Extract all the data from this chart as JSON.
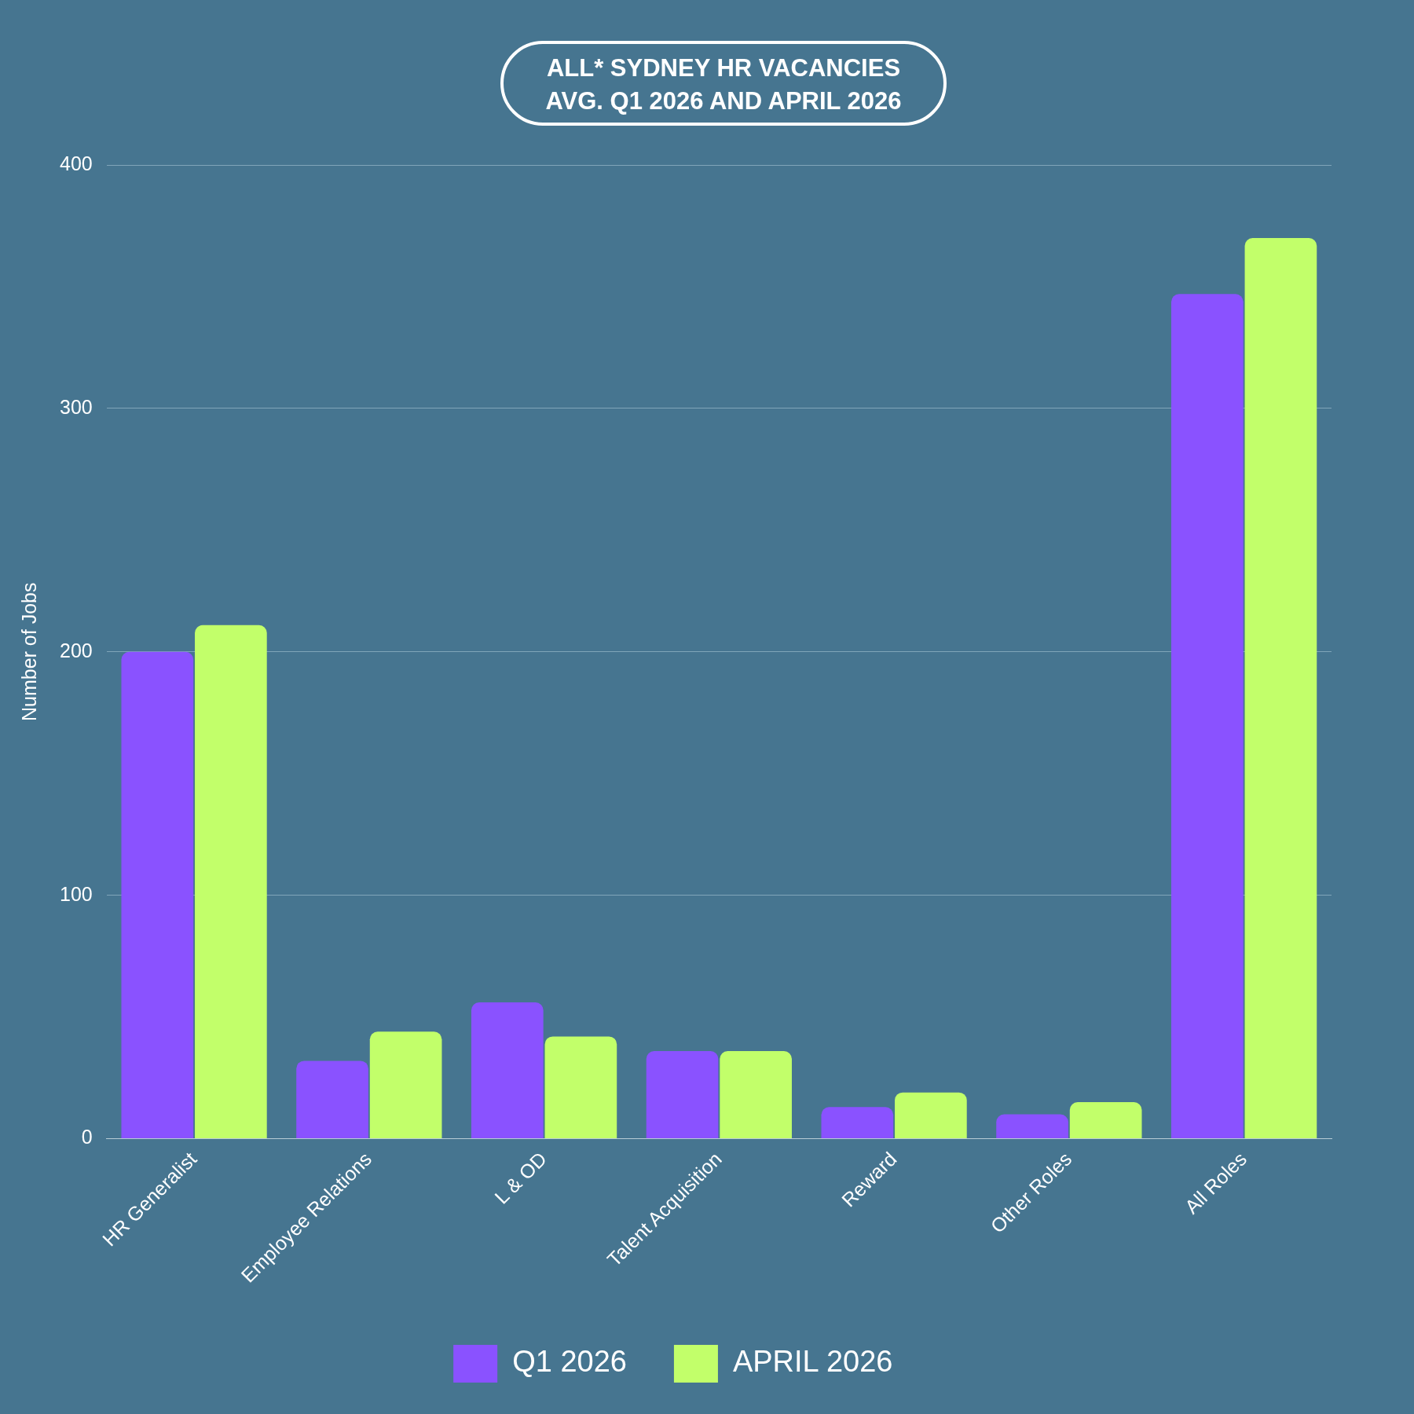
{
  "chart_data": {
    "type": "bar",
    "title": "ALL* SYDNEY HR VACANCIES",
    "subtitle": "AVG. Q1 2026 AND APRIL 2026",
    "ylabel": "Number of Jobs",
    "categories": [
      "HR Generalist",
      "Employee Relations",
      "L & OD",
      "Talent Acquisition",
      "Reward",
      "Other Roles",
      "All Roles"
    ],
    "series": [
      {
        "name": "Q1 2026",
        "color": "#8a52ff",
        "values": [
          200,
          32,
          56,
          36,
          13,
          10,
          347
        ]
      },
      {
        "name": "APRIL 2026",
        "color": "#c2ff6a",
        "values": [
          211,
          44,
          42,
          36,
          19,
          15,
          370
        ]
      }
    ],
    "ylim": [
      0,
      400
    ],
    "yticks": [
      0,
      100,
      200,
      300,
      400
    ],
    "grid": "y",
    "legend": "bottom"
  }
}
